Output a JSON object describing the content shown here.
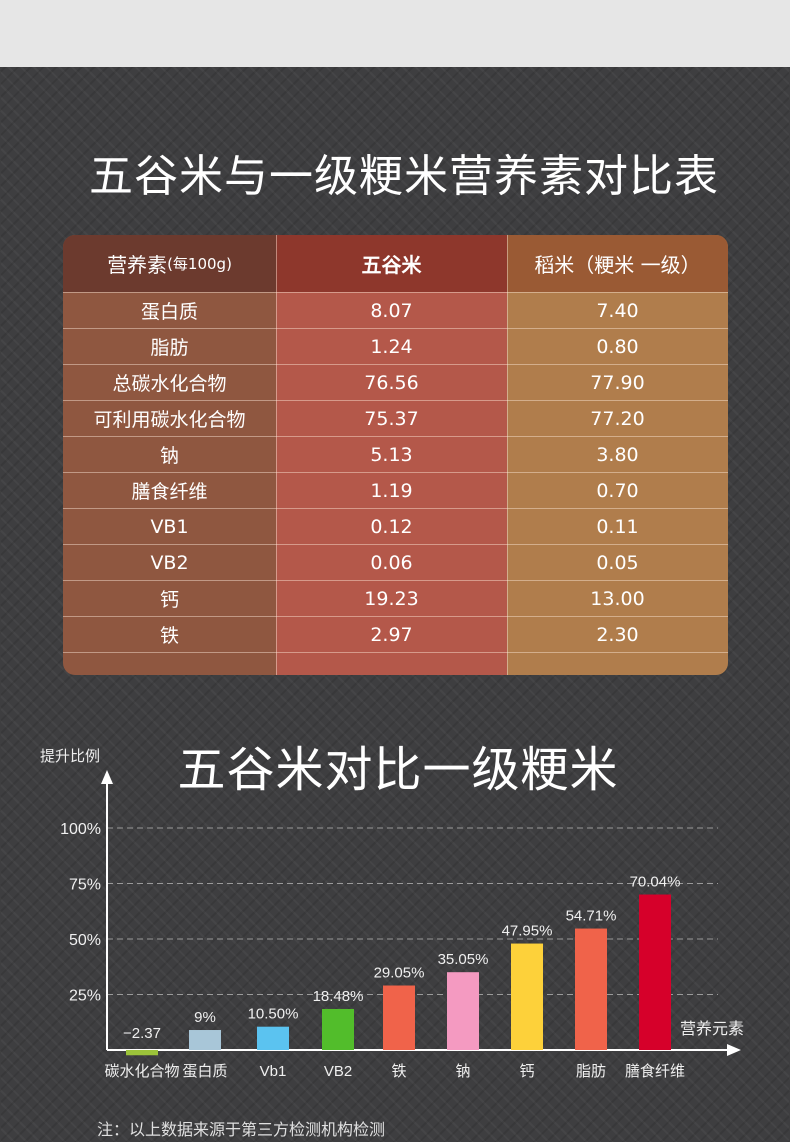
{
  "top_title": "五谷米与一级粳米营养素对比表",
  "table": {
    "header": {
      "col1_main": "营养素",
      "col1_small": "(每100g)",
      "col2": "五谷米",
      "col3": "稻米（粳米 一级）"
    },
    "rows": [
      {
        "name": "蛋白质",
        "wugu": "8.07",
        "daomi": "7.40"
      },
      {
        "name": "脂肪",
        "wugu": "1.24",
        "daomi": "0.80"
      },
      {
        "name": "总碳水化合物",
        "wugu": "76.56",
        "daomi": "77.90"
      },
      {
        "name": "可利用碳水化合物",
        "wugu": "75.37",
        "daomi": "77.20"
      },
      {
        "name": "钠",
        "wugu": "5.13",
        "daomi": "3.80"
      },
      {
        "name": "膳食纤维",
        "wugu": "1.19",
        "daomi": "0.70"
      },
      {
        "name": "VB1",
        "wugu": "0.12",
        "daomi": "0.11"
      },
      {
        "name": "VB2",
        "wugu": "0.06",
        "daomi": "0.05"
      },
      {
        "name": "钙",
        "wugu": "19.23",
        "daomi": "13.00"
      },
      {
        "name": "铁",
        "wugu": "2.97",
        "daomi": "2.30"
      }
    ]
  },
  "chart_title": "五谷米对比一级粳米",
  "chart_data": {
    "type": "bar",
    "ylabel": "提升比例",
    "xlabel": "营养元素",
    "yticks": [
      "100%",
      "75%",
      "50%",
      "25%"
    ],
    "ytick_values": [
      100,
      75,
      50,
      25
    ],
    "ylim": [
      0,
      100
    ],
    "grid": "dashed horizontal",
    "categories": [
      "碳水化合物",
      "蛋白质",
      "Vb1",
      "VB2",
      "铁",
      "钠",
      "钙",
      "脂肪",
      "膳食纤维"
    ],
    "values": [
      -2.37,
      9,
      10.5,
      18.48,
      29.05,
      35.05,
      47.95,
      54.71,
      70.04
    ],
    "labels": [
      "−2.37",
      "9%",
      "10.50%",
      "18.48%",
      "29.05%",
      "35.05%",
      "47.95%",
      "54.71%",
      "70.04%"
    ],
    "colors": [
      "#9cc33a",
      "#a8c6d8",
      "#5bc3f0",
      "#52bd2b",
      "#f0634a",
      "#f49ac1",
      "#fdd13a",
      "#f0634a",
      "#d6002a"
    ]
  },
  "footnote": "注：以上数据来源于第三方检测机构检测"
}
